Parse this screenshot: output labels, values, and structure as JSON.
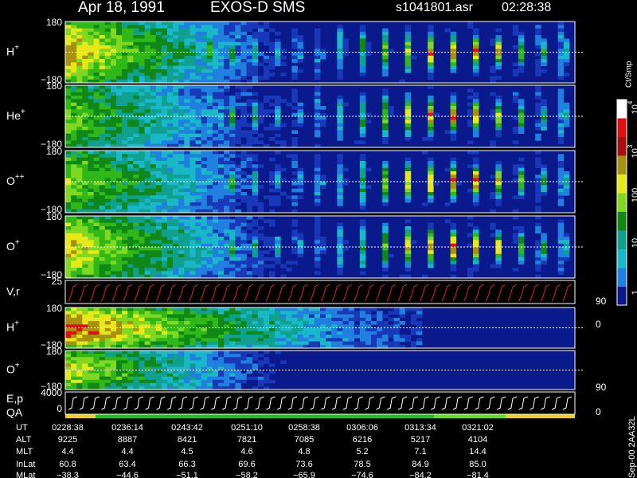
{
  "header": {
    "date": "Apr 18, 1991",
    "instrument": "EXOS-D SMS",
    "file": "s1041801.asr",
    "time": "02:28:38"
  },
  "panels": [
    {
      "label": {
        "base": "H",
        "sup": "+"
      },
      "ticks": [
        "180",
        "−180"
      ]
    },
    {
      "label": {
        "base": "He",
        "sup": "+"
      },
      "ticks": [
        "180",
        "−180"
      ]
    },
    {
      "label": {
        "base": "O",
        "sup": "++"
      },
      "ticks": [
        "180",
        "−180"
      ]
    },
    {
      "label": {
        "base": "O",
        "sup": "+"
      },
      "ticks": [
        "180",
        "−180"
      ]
    },
    {
      "label": {
        "base": "V,r"
      },
      "ticks": [
        "25"
      ],
      "right_ticks": [
        "90",
        "0"
      ]
    },
    {
      "label": {
        "base": "H",
        "sup": "+"
      },
      "ticks": [
        "180",
        "−180"
      ]
    },
    {
      "label": {
        "base": "O",
        "sup": "+"
      },
      "ticks": [
        "180",
        "−180"
      ],
      "right_ticks": [
        "90"
      ]
    },
    {
      "label": {
        "base": "E,p"
      },
      "sublabel": "QA",
      "ticks": [
        "4000",
        "0"
      ],
      "right_ticks": [
        "0"
      ]
    }
  ],
  "colorbar": {
    "unit": "Ct/Smp",
    "labels": [
      {
        "base": "10",
        "sup": "4"
      },
      {
        "base": "10",
        "sup": "3"
      },
      {
        "base": "100"
      },
      {
        "base": "10"
      },
      {
        "base": "1"
      }
    ]
  },
  "table": {
    "row_labels": [
      "UT",
      "ALT",
      "MLT",
      "InLat",
      "MLat"
    ],
    "rows": [
      [
        "0228:38",
        "0236:14",
        "0243:42",
        "0251:10",
        "0258:38",
        "0306:06",
        "0313:34",
        "0321:02"
      ],
      [
        "9225",
        "8887",
        "8421",
        "7821",
        "7085",
        "6216",
        "5217",
        "4104"
      ],
      [
        "4.4",
        "4.4",
        "4.5",
        "4.6",
        "4.8",
        "5.2",
        "7.1",
        "14.4"
      ],
      [
        "60.8",
        "63.4",
        "66.3",
        "69.6",
        "73.6",
        "78.5",
        "84.9",
        "85.0"
      ],
      [
        "−38.3",
        "−44.6",
        "−51.1",
        "−58.2",
        "−65.9",
        "−74.6",
        "−84.2",
        "−81.4"
      ]
    ]
  },
  "footer": "Sep-00 2AA32L"
}
